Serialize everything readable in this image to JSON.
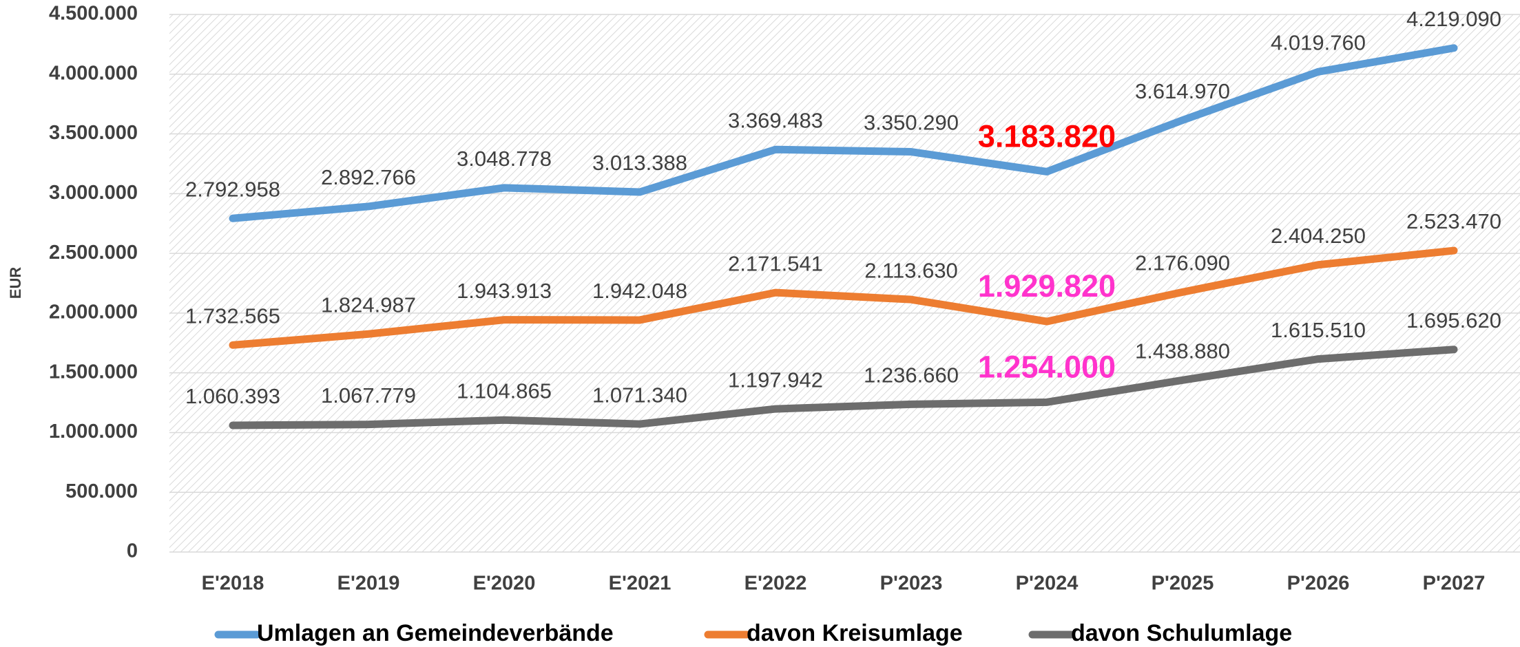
{
  "chart_data": {
    "type": "line",
    "y_label": "EUR",
    "categories": [
      "E'2018",
      "E'2019",
      "E'2020",
      "E'2021",
      "E'2022",
      "P'2023",
      "P'2024",
      "P'2025",
      "P'2026",
      "P'2027"
    ],
    "ylim": [
      0,
      4500000
    ],
    "yticks": [
      0,
      {
        "value": 500000,
        "label": "500.000"
      },
      {
        "value": 1000000,
        "label": "1.000.000"
      },
      {
        "value": 1500000,
        "label": "1.500.000"
      },
      {
        "value": 2000000,
        "label": "2.000.000"
      },
      {
        "value": 2500000,
        "label": "2.500.000"
      },
      {
        "value": 3000000,
        "label": "3.000.000"
      },
      {
        "value": 3500000,
        "label": "3.500.000"
      },
      {
        "value": 4000000,
        "label": "4.000.000"
      },
      {
        "value": 4500000,
        "label": "4.500.000"
      }
    ],
    "grid": true,
    "legend": "bottom",
    "series": [
      {
        "name": "Umlagen an Gemeindeverbände",
        "color": "#5b9bd5",
        "values": [
          2792958,
          2892766,
          3048778,
          3013388,
          3369483,
          3350290,
          3183820,
          3614970,
          4019760,
          4219090
        ],
        "value_labels": [
          "2.792.958",
          "2.892.766",
          "3.048.778",
          "3.013.388",
          "3.369.483",
          "3.350.290",
          "3.183.820",
          "3.614.970",
          "4.019.760",
          "4.219.090"
        ],
        "highlight": {
          "index": 6,
          "color": "#ff0000"
        }
      },
      {
        "name": "davon Kreisumlage",
        "color": "#ed7d31",
        "values": [
          1732565,
          1824987,
          1943913,
          1942048,
          2171541,
          2113630,
          1929820,
          2176090,
          2404250,
          2523470
        ],
        "value_labels": [
          "1.732.565",
          "1.824.987",
          "1.943.913",
          "1.942.048",
          "2.171.541",
          "2.113.630",
          "1.929.820",
          "2.176.090",
          "2.404.250",
          "2.523.470"
        ],
        "highlight": {
          "index": 6,
          "color": "#ff33cc"
        }
      },
      {
        "name": "davon Schulumlage",
        "color": "#6d6d6d",
        "values": [
          1060393,
          1067779,
          1104865,
          1071340,
          1197942,
          1236660,
          1254000,
          1438880,
          1615510,
          1695620
        ],
        "value_labels": [
          "1.060.393",
          "1.067.779",
          "1.104.865",
          "1.071.340",
          "1.197.942",
          "1.236.660",
          "1.254.000",
          "1.438.880",
          "1.615.510",
          "1.695.620"
        ],
        "highlight": {
          "index": 6,
          "color": "#ff33cc"
        }
      }
    ]
  }
}
